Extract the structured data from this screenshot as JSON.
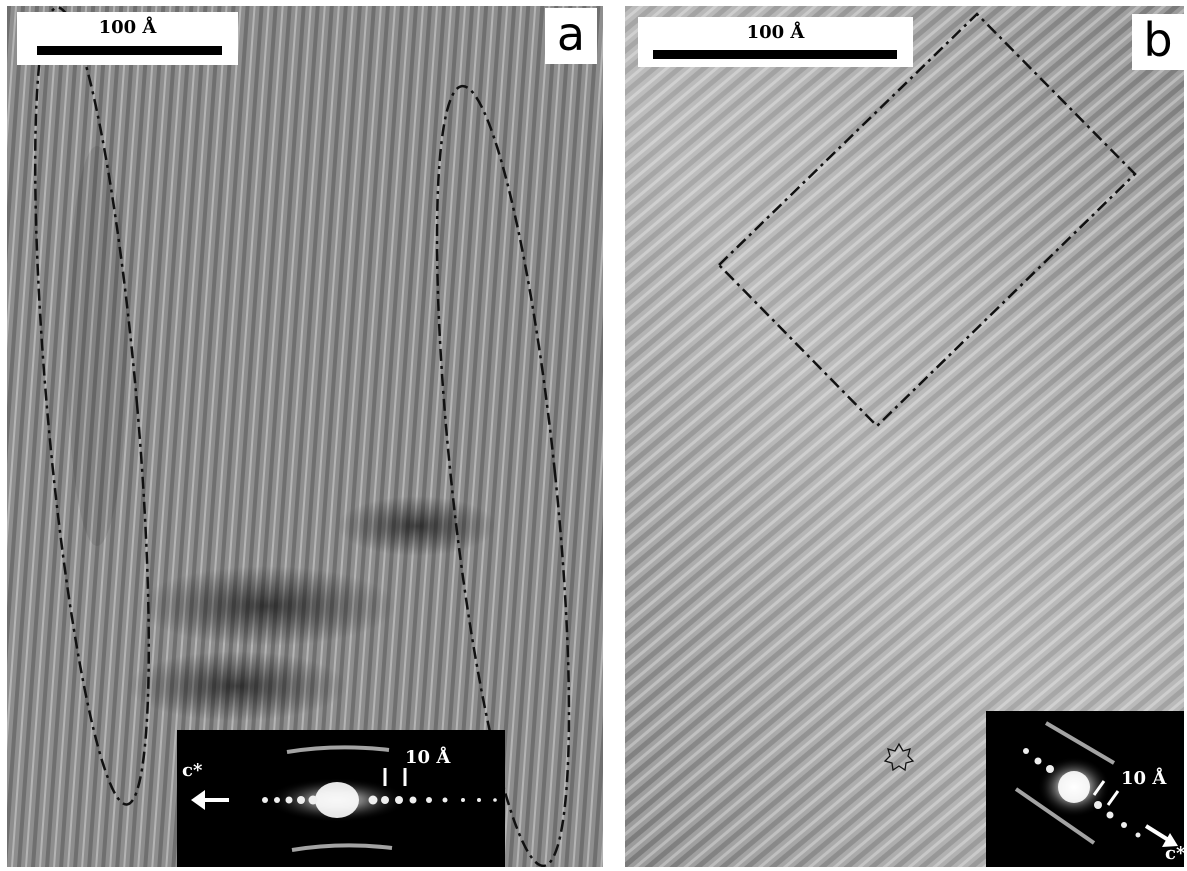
{
  "panels": [
    {
      "id": "a",
      "label": "a",
      "scale_bar_text": "100 Å",
      "inset": {
        "spacing_label": "10 Å",
        "axis_label": "c*"
      },
      "outline": "two dash-dot ellipses"
    },
    {
      "id": "b",
      "label": "b",
      "scale_bar_text": "100 Å",
      "inset": {
        "spacing_label": "10 Å",
        "axis_label": "c*"
      },
      "outline": "dash-dot rectangle",
      "marker": "star-icon"
    }
  ],
  "colors": {
    "background": "#ffffff",
    "image_gray": "#8c8c8c",
    "inset_background": "#000000",
    "annotation": "#000000"
  }
}
